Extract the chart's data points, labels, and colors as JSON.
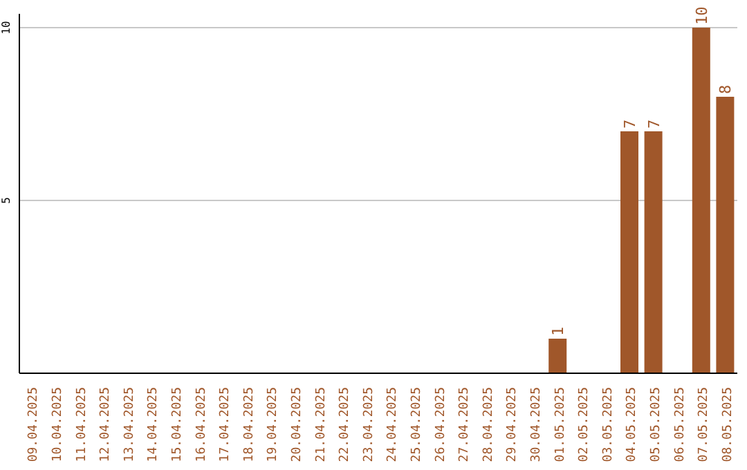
{
  "chart_data": {
    "type": "bar",
    "categories": [
      "09.04.2025",
      "10.04.2025",
      "11.04.2025",
      "12.04.2025",
      "13.04.2025",
      "14.04.2025",
      "15.04.2025",
      "16.04.2025",
      "17.04.2025",
      "18.04.2025",
      "19.04.2025",
      "20.04.2025",
      "21.04.2025",
      "22.04.2025",
      "23.04.2025",
      "24.04.2025",
      "25.04.2025",
      "26.04.2025",
      "27.04.2025",
      "28.04.2025",
      "29.04.2025",
      "30.04.2025",
      "01.05.2025",
      "02.05.2025",
      "03.05.2025",
      "04.05.2025",
      "05.05.2025",
      "06.05.2025",
      "07.05.2025",
      "08.05.2025"
    ],
    "values": [
      0,
      0,
      0,
      0,
      0,
      0,
      0,
      0,
      0,
      0,
      0,
      0,
      0,
      0,
      0,
      0,
      0,
      0,
      0,
      0,
      0,
      0,
      1,
      0,
      0,
      7,
      7,
      0,
      10,
      8
    ],
    "value_labels": [
      null,
      null,
      null,
      null,
      null,
      null,
      null,
      null,
      null,
      null,
      null,
      null,
      null,
      null,
      null,
      null,
      null,
      null,
      null,
      null,
      null,
      null,
      "1",
      null,
      null,
      "7",
      "7",
      null,
      "10",
      "8"
    ],
    "color": "#a0572a",
    "ylim": [
      0,
      10.4
    ],
    "yticks": [
      5,
      10
    ],
    "grid": "y"
  }
}
